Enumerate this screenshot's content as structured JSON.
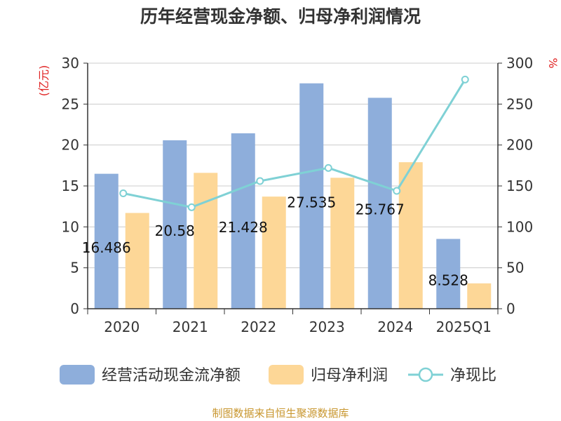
{
  "chart_data": {
    "type": "bar",
    "title": "历年经营现金净额、归母净利润情况",
    "categories": [
      "2020",
      "2021",
      "2022",
      "2023",
      "2024",
      "2025Q1"
    ],
    "ylabel_left": "(亿元)",
    "ylabel_right": "%",
    "ylim_left": [
      0,
      30
    ],
    "ylim_right": [
      0,
      300
    ],
    "left_ticks": [
      "0",
      "5",
      "10",
      "15",
      "20",
      "25",
      "30"
    ],
    "right_ticks": [
      "0",
      "50",
      "100",
      "150",
      "200",
      "250",
      "300"
    ],
    "series": [
      {
        "name": "经营活动现金流净额",
        "kind": "bar",
        "axis": "left",
        "color": "#8eaedb",
        "values": [
          16.486,
          20.58,
          21.428,
          27.535,
          25.767,
          8.528
        ],
        "labels": [
          "16.486",
          "20.58",
          "21.428",
          "27.535",
          "25.767",
          "8.528"
        ]
      },
      {
        "name": "归母净利润",
        "kind": "bar",
        "axis": "left",
        "color": "#fdd797",
        "values": [
          11.7,
          16.6,
          13.7,
          16.0,
          17.9,
          3.1
        ]
      },
      {
        "name": "净现比",
        "kind": "line",
        "axis": "right",
        "color": "#7fd1d5",
        "values": [
          141,
          124,
          156,
          172,
          144,
          280
        ]
      }
    ]
  },
  "footer": {
    "source": "制图数据来自恒生聚源数据库"
  }
}
